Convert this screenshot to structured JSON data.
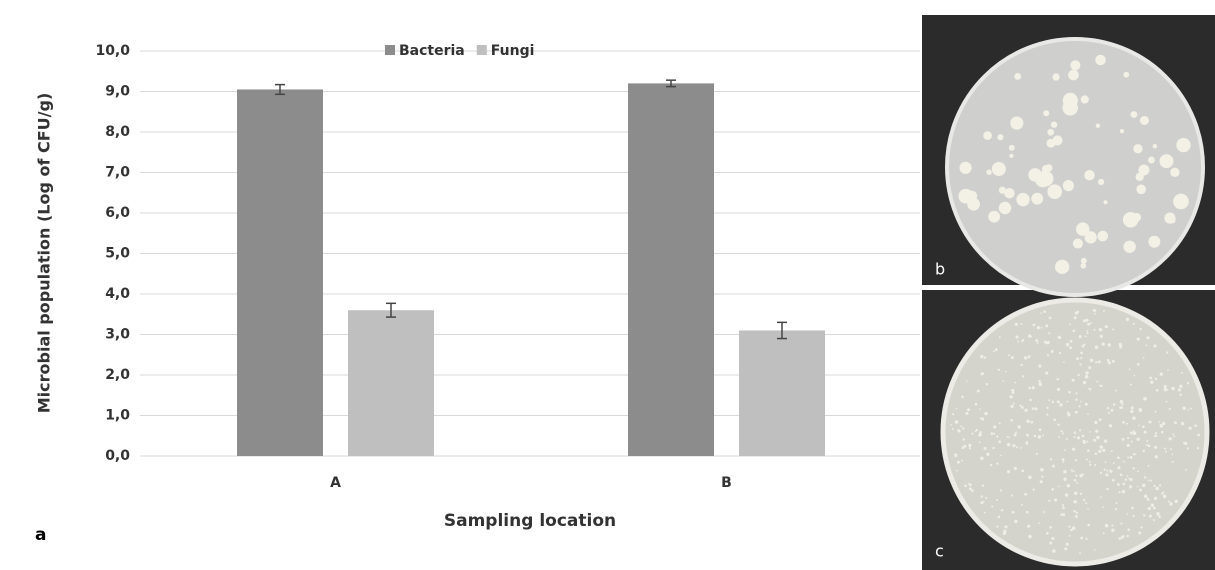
{
  "chart_data": {
    "type": "bar",
    "y_label": "Microbial population (Log of CFU/g)",
    "x_label": "Sampling location",
    "categories": [
      "A",
      "B"
    ],
    "series": [
      {
        "name": "Bacteria",
        "color": "#8c8c8c",
        "values": [
          9.05,
          9.2
        ],
        "errors": [
          0.12,
          0.08
        ]
      },
      {
        "name": "Fungi",
        "color": "#bfbfbf",
        "values": [
          3.6,
          3.1
        ],
        "errors": [
          0.17,
          0.2
        ]
      }
    ],
    "ylim": [
      0,
      10
    ],
    "yticks": [
      {
        "value": 0,
        "label": "0,0"
      },
      {
        "value": 1,
        "label": "1,0"
      },
      {
        "value": 2,
        "label": "2,0"
      },
      {
        "value": 3,
        "label": "3,0"
      },
      {
        "value": 4,
        "label": "4,0"
      },
      {
        "value": 5,
        "label": "5,0"
      },
      {
        "value": 6,
        "label": "6,0"
      },
      {
        "value": 7,
        "label": "7,0"
      },
      {
        "value": 8,
        "label": "8,0"
      },
      {
        "value": 9,
        "label": "9,0"
      },
      {
        "value": 10,
        "label": "10,0"
      }
    ],
    "grid": true,
    "legend": "top"
  },
  "panel_labels": [
    "a",
    "b",
    "c"
  ]
}
